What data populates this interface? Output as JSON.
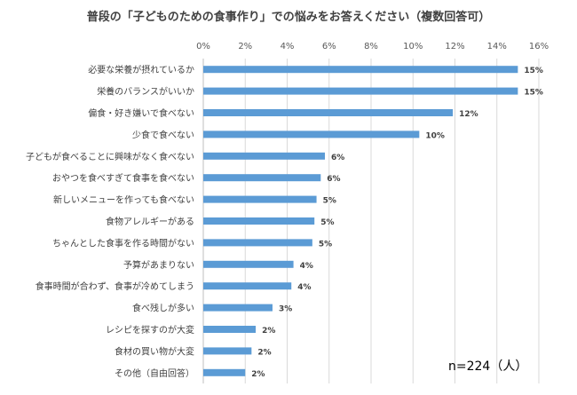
{
  "chart_data": {
    "type": "bar",
    "orientation": "horizontal",
    "title": "普段の「子どものための食事作り」での悩みをお答えください（複数回答可）",
    "categories": [
      "必要な栄養が摂れているか",
      "栄養のバランスがいいか",
      "偏食・好き嫌いで食べない",
      "少食で食べない",
      "子どもが食べることに興味がなく食べない",
      "おやつを食べすぎて食事を食べない",
      "新しいメニューを作っても食べない",
      "食物アレルギーがある",
      "ちゃんとした食事を作る時間がない",
      "予算があまりない",
      "食事時間が合わず、食事が冷めてしまう",
      "食べ残しが多い",
      "レシピを探すのが大変",
      "食材の買い物が大変",
      "その他（自由回答）"
    ],
    "values": [
      15.0,
      15.0,
      11.9,
      10.3,
      5.8,
      5.6,
      5.4,
      5.3,
      5.2,
      4.3,
      4.2,
      3.3,
      2.5,
      2.3,
      2.0
    ],
    "data_labels": [
      "15%",
      "15%",
      "12%",
      "10%",
      "6%",
      "6%",
      "5%",
      "5%",
      "5%",
      "4%",
      "4%",
      "3%",
      "2%",
      "2%",
      "2%"
    ],
    "x_ticks": [
      "0%",
      "2%",
      "4%",
      "6%",
      "8%",
      "10%",
      "12%",
      "14%",
      "16%"
    ],
    "xlim": [
      0,
      16
    ],
    "tick_step": 2,
    "x_axis_position": "top",
    "grid": true,
    "bar_color": "#5b9bd5",
    "grid_color": "#d9d9d9",
    "note": "n=224（人）"
  }
}
